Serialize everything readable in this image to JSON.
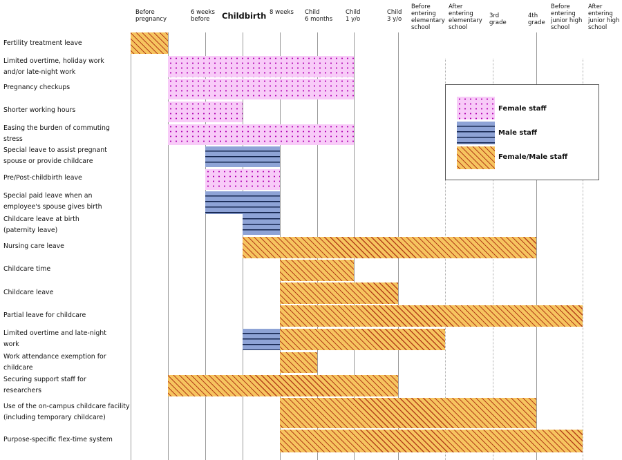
{
  "milestones": [
    "Before pregnancy",
    "6 weeks before",
    "Childbirth",
    "8 weeks",
    "Child 6 months",
    "Child 1 y/o",
    "Child 3 y/o",
    "Before entering elementary school",
    "After entering elementary school",
    "3rd grade",
    "4th grade",
    "Before entering junior high school",
    "After entering junior high school"
  ],
  "header_labels": [
    "Before\npregnancy",
    "6 weeks\nbefore",
    "Childbirth",
    "8 weeks",
    "Child\n6 months",
    "Child\n1 y/o",
    "Child\n3 y/o",
    "Before\nentering\nelementary\nschool",
    "After\nentering\nelementary\nschool",
    "3rd\ngrade",
    "4th\ngrade",
    "Before\nentering\njunior high\nschool",
    "After\nentering\njunior high\nschool"
  ],
  "legend": [
    {
      "type": "female",
      "label": "Female staff"
    },
    {
      "type": "male",
      "label": "Male staff"
    },
    {
      "type": "both",
      "label": "Female/Male staff"
    }
  ],
  "colors": {
    "female": "#f8cbf8",
    "male": "#8ea3d6",
    "both": "#f6c45f"
  },
  "rows": [
    {
      "label": "Fertility treatment leave",
      "segments": [
        {
          "from": 0,
          "to": 1,
          "type": "both"
        }
      ]
    },
    {
      "label": "Limited overtime, holiday work\nand/or late-night work",
      "segments": [
        {
          "from": 1,
          "to": 6,
          "type": "female"
        }
      ]
    },
    {
      "label": "Pregnancy checkups",
      "segments": [
        {
          "from": 1,
          "to": 6,
          "type": "female"
        }
      ]
    },
    {
      "label": "Shorter working hours",
      "segments": [
        {
          "from": 1,
          "to": 3,
          "type": "female"
        }
      ]
    },
    {
      "label": "Easing the burden of commuting\nstress",
      "segments": [
        {
          "from": 1,
          "to": 6,
          "type": "female"
        }
      ]
    },
    {
      "label": "Special leave to assist pregnant\nspouse or provide childcare",
      "segments": [
        {
          "from": 2,
          "to": 4,
          "type": "male"
        }
      ]
    },
    {
      "label": "Pre/Post-childbirth leave",
      "segments": [
        {
          "from": 2,
          "to": 4,
          "type": "female"
        }
      ]
    },
    {
      "label": "Special paid leave when an\nemployee's spouse gives birth",
      "segments": [
        {
          "from": 2,
          "to": 4,
          "type": "male"
        }
      ]
    },
    {
      "label": "Childcare leave at birth\n(paternity leave)",
      "segments": [
        {
          "from": 3,
          "to": 4,
          "type": "male"
        }
      ]
    },
    {
      "label": "Nursing care leave",
      "segments": [
        {
          "from": 3,
          "to": 10,
          "type": "both"
        }
      ]
    },
    {
      "label": "Childcare time",
      "segments": [
        {
          "from": 4,
          "to": 6,
          "type": "both"
        }
      ]
    },
    {
      "label": "Childcare leave",
      "segments": [
        {
          "from": 4,
          "to": 7,
          "type": "both"
        }
      ]
    },
    {
      "label": "Partial leave for childcare",
      "segments": [
        {
          "from": 4,
          "to": 11,
          "type": "both"
        }
      ]
    },
    {
      "label": "Limited overtime and late-night\nwork",
      "segments": [
        {
          "from": 3,
          "to": 4,
          "type": "male"
        },
        {
          "from": 4,
          "to": 8,
          "type": "both"
        }
      ]
    },
    {
      "label": "Work attendance exemption for\nchildcare",
      "segments": [
        {
          "from": 4,
          "to": 5,
          "type": "both"
        }
      ]
    },
    {
      "label": "Securing support staff for\nresearchers",
      "segments": [
        {
          "from": 1,
          "to": 7,
          "type": "both"
        }
      ]
    },
    {
      "label": "Use of the on-campus childcare facility\n(including temporary childcare)",
      "segments": [
        {
          "from": 4,
          "to": 10,
          "type": "both"
        }
      ]
    },
    {
      "label": "Purpose-specific flex-time system",
      "segments": [
        {
          "from": 4,
          "to": 11,
          "type": "both"
        }
      ]
    }
  ]
}
